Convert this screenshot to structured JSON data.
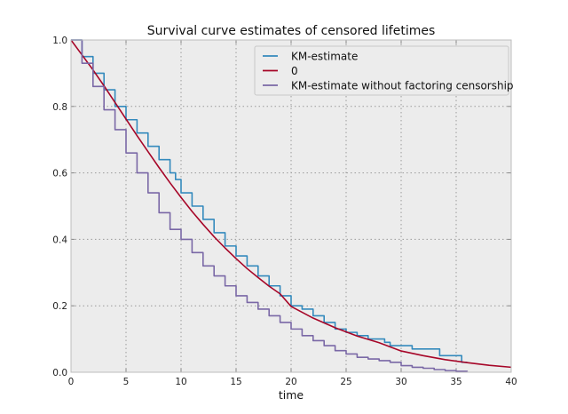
{
  "chart_data": {
    "type": "line",
    "title": "Survival curve estimates of censored lifetimes",
    "xlabel": "time",
    "ylabel": "",
    "xlim": [
      0,
      40
    ],
    "ylim": [
      0.0,
      1.0
    ],
    "xticks": [
      "0",
      "5",
      "10",
      "15",
      "20",
      "25",
      "30",
      "35",
      "40"
    ],
    "yticks": [
      "0.0",
      "0.2",
      "0.4",
      "0.6",
      "0.8",
      "1.0"
    ],
    "grid": true,
    "legend_position": "top-right",
    "background": "#ececec",
    "series": [
      {
        "name": "KM-estimate",
        "color": "#348abd",
        "step": true,
        "x": [
          0,
          1,
          2,
          3,
          4,
          5,
          6,
          7,
          8,
          9,
          9.5,
          10,
          11,
          12,
          13,
          14,
          15,
          16,
          17,
          18,
          19,
          20,
          21,
          22,
          23,
          24,
          25,
          26,
          27,
          28,
          28.5,
          29,
          30,
          31,
          32,
          33,
          33.5,
          34,
          35,
          35.5,
          36
        ],
        "y": [
          1.0,
          0.95,
          0.9,
          0.85,
          0.8,
          0.76,
          0.72,
          0.68,
          0.64,
          0.6,
          0.58,
          0.54,
          0.5,
          0.46,
          0.42,
          0.38,
          0.35,
          0.32,
          0.29,
          0.26,
          0.23,
          0.2,
          0.19,
          0.17,
          0.15,
          0.13,
          0.12,
          0.11,
          0.1,
          0.1,
          0.09,
          0.08,
          0.08,
          0.07,
          0.07,
          0.07,
          0.05,
          0.05,
          0.05,
          0.03,
          0.03
        ]
      },
      {
        "name": "0",
        "color": "#a60628",
        "step": false,
        "x": [
          0,
          1,
          2,
          3,
          4,
          5,
          6,
          7,
          8,
          9,
          10,
          11,
          12,
          13,
          14,
          15,
          16,
          17,
          18,
          19,
          20,
          22,
          24,
          26,
          28,
          30,
          32,
          34,
          36,
          38,
          40
        ],
        "y": [
          1.0,
          0.955,
          0.91,
          0.862,
          0.812,
          0.762,
          0.712,
          0.664,
          0.616,
          0.57,
          0.526,
          0.484,
          0.445,
          0.408,
          0.374,
          0.342,
          0.312,
          0.285,
          0.259,
          0.236,
          0.198,
          0.163,
          0.134,
          0.109,
          0.089,
          0.064,
          0.05,
          0.038,
          0.029,
          0.021,
          0.015
        ]
      },
      {
        "name": "KM-estimate without factoring censorship",
        "color": "#7a68a6",
        "step": true,
        "x": [
          0,
          1,
          2,
          3,
          4,
          5,
          6,
          7,
          8,
          9,
          10,
          11,
          12,
          13,
          14,
          15,
          16,
          17,
          18,
          19,
          20,
          21,
          22,
          23,
          24,
          25,
          26,
          27,
          28,
          29,
          30,
          31,
          32,
          33,
          34,
          35,
          36
        ],
        "y": [
          1.0,
          0.93,
          0.86,
          0.79,
          0.73,
          0.66,
          0.6,
          0.54,
          0.48,
          0.43,
          0.4,
          0.36,
          0.32,
          0.29,
          0.26,
          0.23,
          0.21,
          0.19,
          0.17,
          0.15,
          0.13,
          0.11,
          0.095,
          0.08,
          0.065,
          0.055,
          0.045,
          0.04,
          0.035,
          0.03,
          0.02,
          0.015,
          0.012,
          0.008,
          0.005,
          0.003,
          0.002
        ]
      }
    ]
  }
}
